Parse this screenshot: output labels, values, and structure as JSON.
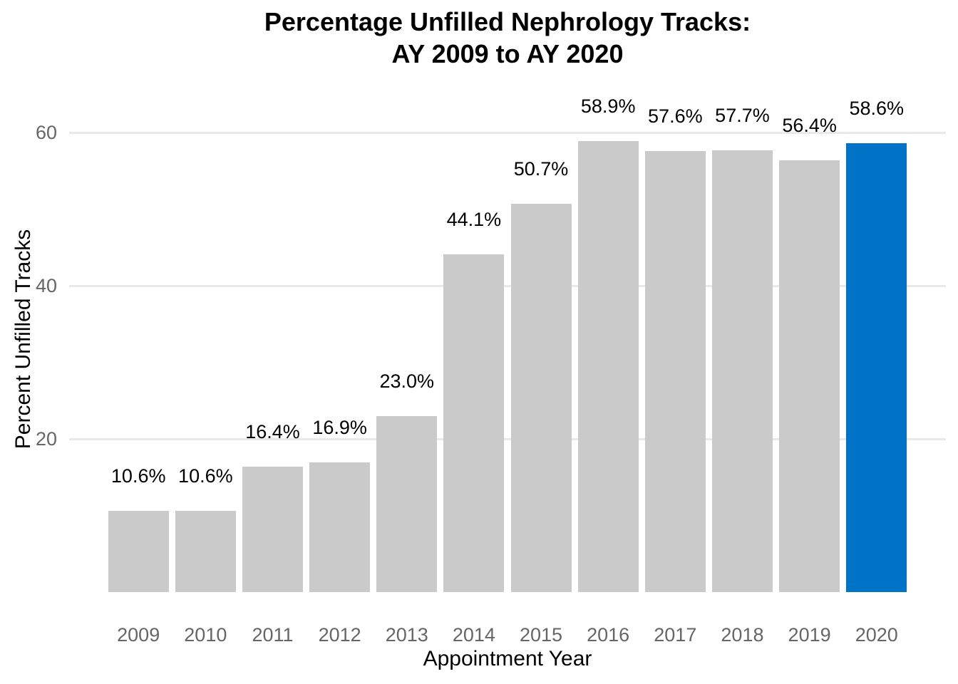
{
  "title": {
    "line1": "Percentage Unfilled Nephrology Tracks:",
    "line2": "AY 2009 to AY 2020"
  },
  "chart_data": {
    "type": "bar",
    "title": "Percentage Unfilled Nephrology Tracks: AY 2009 to AY 2020",
    "xlabel": "Appointment Year",
    "ylabel": "Percent Unfilled Tracks",
    "categories": [
      "2009",
      "2010",
      "2011",
      "2012",
      "2013",
      "2014",
      "2015",
      "2016",
      "2017",
      "2018",
      "2019",
      "2020"
    ],
    "values": [
      10.6,
      10.6,
      16.4,
      16.9,
      23.0,
      44.1,
      50.7,
      58.9,
      57.6,
      57.7,
      56.4,
      58.6
    ],
    "bar_labels": [
      "10.6%",
      "10.6%",
      "16.4%",
      "16.9%",
      "23.0%",
      "44.1%",
      "50.7%",
      "58.9%",
      "57.6%",
      "57.7%",
      "56.4%",
      "58.6%"
    ],
    "ylim": [
      0,
      60
    ],
    "yticks": [
      20,
      40,
      60
    ],
    "ytick_labels": [
      "20",
      "40",
      "60"
    ],
    "grid": "horizontal-only",
    "legend": "none",
    "highlight_category": "2020",
    "colors": {
      "bar": "#CACACA",
      "highlight_bar": "#0073C6",
      "gridline": "#E9E9E9",
      "axis_text": "#666666",
      "label_text": "#000000"
    }
  }
}
